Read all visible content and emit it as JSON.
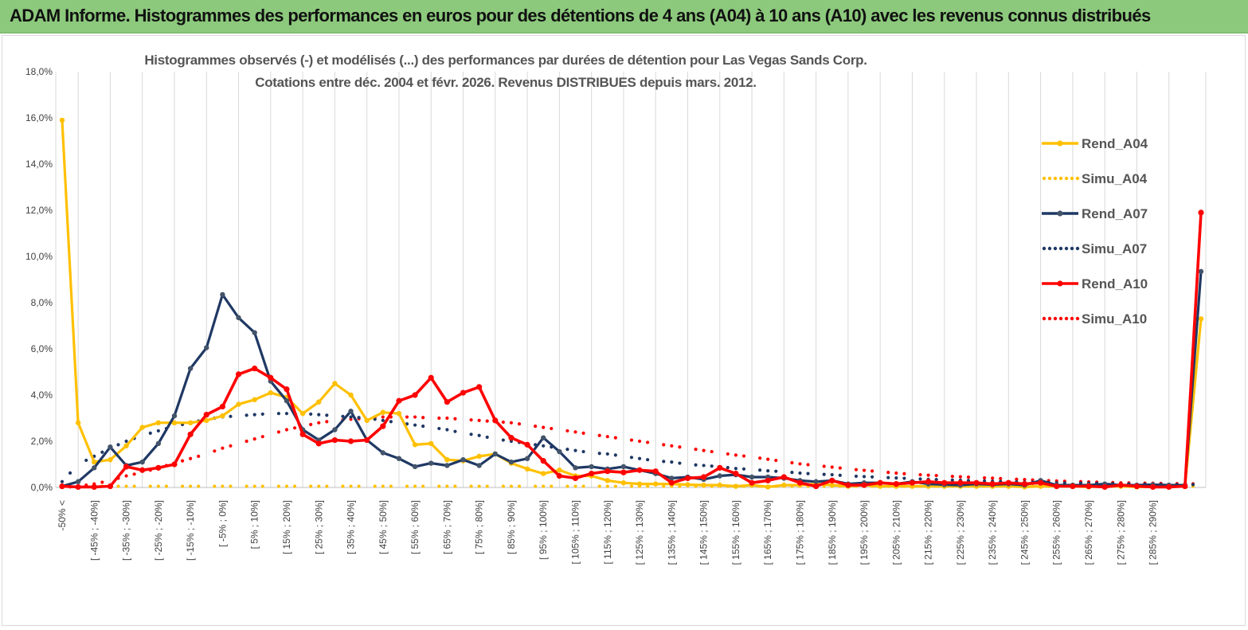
{
  "banner": {
    "title": "ADAM Informe. Histogrammes des performances en euros pour des détentions de 4 ans (A04) à 10 ans (A10) avec les revenus connus distribués"
  },
  "chart_data": {
    "type": "line",
    "title": "Histogrammes observés (-) et modélisés (...) des performances par durées de détention pour Las Vegas Sands Corp.",
    "subtitle": "Cotations entre déc. 2004 et févr. 2026. Revenus DISTRIBUES depuis mars. 2012.",
    "xlabel": "",
    "ylabel": "",
    "ylim": [
      0,
      18
    ],
    "yticks": [
      "0,0%",
      "2,0%",
      "4,0%",
      "6,0%",
      "8,0%",
      "10,0%",
      "12,0%",
      "14,0%",
      "16,0%",
      "18,0%"
    ],
    "grid": "vertical",
    "legend_position": "right",
    "colors": {
      "rend_a04": "#ffc000",
      "simu_a04": "#ffc000",
      "rend_a07": "#1f3864",
      "simu_a07": "#1f3864",
      "rend_a10": "#ff0000",
      "simu_a10": "#ff0000",
      "rend_a07_marker": "#44546a"
    },
    "x_labels": [
      "-50% <",
      "[ -45% ; -40%]",
      "[ -35% ; -30%]",
      "[ -25% ; -20%]",
      "[ -15% ; -10%]",
      "[ -5% ; 0%]",
      "[ 5% ; 10%]",
      "[ 15% ; 20%]",
      "[ 25% ; 30%]",
      "[ 35% ; 40%]",
      "[ 45% ; 50%]",
      "[ 55% ; 60%]",
      "[ 65% ; 70%]",
      "[ 75% ; 80%]",
      "[ 85% ; 90%]",
      "[ 95% ; 100%]",
      "[ 105% ; 110%]",
      "[ 115% ; 120%]",
      "[ 125% ; 130%]",
      "[ 135% ; 140%]",
      "[ 145% ; 150%]",
      "[ 155% ; 160%]",
      "[ 165% ; 170%]",
      "[ 175% ; 180%]",
      "[ 185% ; 190%]",
      "[ 195% ; 200%]",
      "[ 205% ; 210%]",
      "[ 215% ; 220%]",
      "[ 225% ; 230%]",
      "[ 235% ; 240%]",
      "[ 245% ; 250%]",
      "[ 255% ; 260%]",
      "[ 265% ; 270%]",
      "[ 275% ; 280%]",
      "[ 285% ; 290%]"
    ],
    "series": [
      {
        "name": "Rend_A04",
        "key": "rend_a04",
        "style": "solid",
        "values": [
          15.9,
          2.8,
          1.1,
          1.2,
          1.8,
          2.6,
          2.8,
          2.8,
          2.8,
          2.9,
          3.1,
          3.6,
          3.8,
          4.1,
          3.9,
          3.2,
          3.7,
          4.5,
          4.0,
          2.9,
          3.25,
          3.2,
          1.85,
          1.9,
          1.2,
          1.15,
          1.35,
          1.45,
          1.05,
          0.8,
          0.6,
          0.75,
          0.5,
          0.5,
          0.3,
          0.2,
          0.15,
          0.15,
          0.15,
          0.12,
          0.1,
          0.1,
          0.05,
          0.1,
          0.02,
          0.1,
          0.1,
          0.15,
          0.1,
          0.05,
          0.1,
          0.05,
          0.05,
          0.05,
          0.05,
          0.05,
          0.05,
          0.05,
          0.05,
          0.05,
          0.02,
          0.05,
          0.05,
          0.05,
          0.02,
          0.05,
          0.05,
          0.02,
          0.02,
          0.02,
          0.05,
          7.3
        ]
      },
      {
        "name": "Simu_A04",
        "key": "simu_a04",
        "style": "dotted",
        "values": [
          0.05,
          0.05,
          0.05,
          0.05,
          0.05,
          0.05,
          0.05,
          0.05,
          0.05,
          0.05,
          0.05,
          0.05,
          0.05,
          0.05,
          0.05,
          0.05,
          0.05,
          0.05,
          0.05,
          0.05,
          0.05,
          0.05,
          0.05,
          0.05,
          0.05,
          0.05,
          0.05,
          0.05,
          0.05,
          0.05,
          0.05,
          0.05,
          0.05,
          0.05,
          0.05,
          0.05,
          0.05,
          0.05,
          0.05,
          0.05,
          0.05,
          0.05,
          0.05,
          0.05,
          0.05,
          0.05,
          0.05,
          0.05,
          0.05,
          0.05,
          0.05,
          0.05,
          0.05,
          0.05,
          0.05,
          0.05,
          0.05,
          0.05,
          0.05,
          0.05,
          0.05,
          0.05,
          0.05,
          0.05,
          0.05,
          0.05,
          0.05,
          0.05,
          0.05,
          0.05,
          0.05,
          0.05
        ]
      },
      {
        "name": "Rend_A07",
        "key": "rend_a07",
        "style": "solid",
        "values": [
          0.05,
          0.25,
          0.85,
          1.75,
          0.95,
          1.1,
          1.9,
          3.1,
          5.15,
          6.05,
          8.35,
          7.35,
          6.7,
          4.6,
          3.75,
          2.5,
          2.05,
          2.5,
          3.3,
          2.05,
          1.5,
          1.25,
          0.9,
          1.05,
          0.95,
          1.2,
          0.95,
          1.45,
          1.1,
          1.25,
          2.15,
          1.55,
          0.85,
          0.9,
          0.8,
          0.9,
          0.75,
          0.6,
          0.4,
          0.45,
          0.35,
          0.5,
          0.55,
          0.45,
          0.45,
          0.4,
          0.3,
          0.25,
          0.3,
          0.15,
          0.2,
          0.2,
          0.15,
          0.25,
          0.15,
          0.12,
          0.1,
          0.15,
          0.12,
          0.15,
          0.1,
          0.3,
          0.1,
          0.1,
          0.1,
          0.15,
          0.1,
          0.1,
          0.12,
          0.1,
          0.1,
          9.35
        ]
      },
      {
        "name": "Simu_A07",
        "key": "simu_a07",
        "style": "dotted",
        "values": [
          0.25,
          1.0,
          1.35,
          1.7,
          2.0,
          2.25,
          2.45,
          2.65,
          2.8,
          2.95,
          3.05,
          3.1,
          3.15,
          3.2,
          3.2,
          3.2,
          3.15,
          3.1,
          3.05,
          3.0,
          2.9,
          2.8,
          2.7,
          2.6,
          2.5,
          2.35,
          2.25,
          2.1,
          2.0,
          1.9,
          1.8,
          1.7,
          1.6,
          1.5,
          1.45,
          1.35,
          1.25,
          1.15,
          1.1,
          1.0,
          0.95,
          0.9,
          0.82,
          0.78,
          0.72,
          0.68,
          0.62,
          0.58,
          0.55,
          0.5,
          0.47,
          0.44,
          0.41,
          0.38,
          0.35,
          0.33,
          0.31,
          0.29,
          0.27,
          0.25,
          0.23,
          0.22,
          0.2,
          0.19,
          0.18,
          0.17,
          0.16,
          0.15,
          0.14,
          0.13,
          0.12,
          0.12
        ]
      },
      {
        "name": "Rend_A10",
        "key": "rend_a10",
        "style": "solid",
        "values": [
          0.05,
          0.02,
          0.02,
          0.05,
          0.9,
          0.75,
          0.85,
          1.0,
          2.3,
          3.15,
          3.5,
          4.9,
          5.15,
          4.75,
          4.25,
          2.3,
          1.9,
          2.05,
          2.0,
          2.05,
          2.65,
          3.75,
          4.0,
          4.75,
          3.7,
          4.1,
          4.35,
          2.9,
          2.15,
          1.85,
          1.15,
          0.5,
          0.4,
          0.6,
          0.7,
          0.65,
          0.75,
          0.7,
          0.2,
          0.4,
          0.45,
          0.85,
          0.6,
          0.2,
          0.3,
          0.45,
          0.2,
          0.05,
          0.3,
          0.1,
          0.1,
          0.2,
          0.15,
          0.2,
          0.25,
          0.2,
          0.2,
          0.2,
          0.15,
          0.2,
          0.15,
          0.2,
          0.05,
          0.05,
          0.05,
          0.02,
          0.1,
          0.05,
          0.02,
          0.02,
          0.05,
          11.9
        ]
      },
      {
        "name": "Simu_A10",
        "key": "simu_a10",
        "style": "dotted",
        "values": [
          0.0,
          0.05,
          0.15,
          0.3,
          0.5,
          0.65,
          0.85,
          1.05,
          1.25,
          1.45,
          1.7,
          1.9,
          2.1,
          2.3,
          2.5,
          2.65,
          2.8,
          2.9,
          2.95,
          3.0,
          3.05,
          3.05,
          3.05,
          3.0,
          3.0,
          2.95,
          2.9,
          2.85,
          2.8,
          2.7,
          2.6,
          2.5,
          2.4,
          2.3,
          2.2,
          2.1,
          2.0,
          1.9,
          1.8,
          1.7,
          1.6,
          1.5,
          1.4,
          1.32,
          1.22,
          1.12,
          1.02,
          0.95,
          0.88,
          0.8,
          0.74,
          0.68,
          0.62,
          0.57,
          0.53,
          0.5,
          0.46,
          0.43,
          0.4,
          0.37,
          0.34,
          0.31,
          0.28,
          0.26,
          0.24,
          0.22,
          0.2,
          0.19,
          0.18,
          0.17,
          0.16,
          0.15
        ]
      }
    ]
  }
}
